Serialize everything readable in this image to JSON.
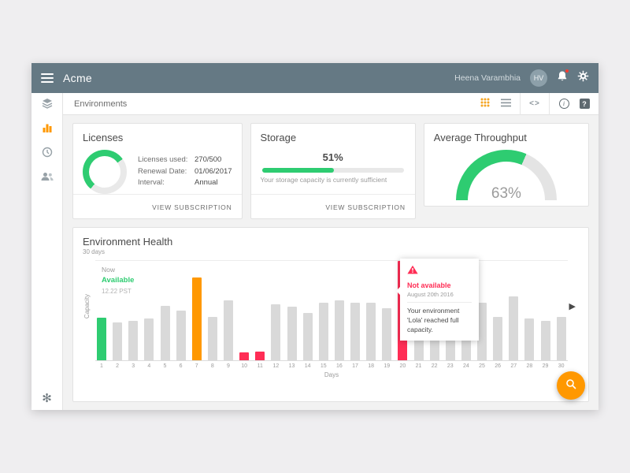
{
  "colors": {
    "green": "#2ecc71",
    "orange": "#ff9800",
    "red": "#ff2d55"
  },
  "header": {
    "app_name": "Acme",
    "user_name": "Heena Varambhia",
    "avatar_initials": "HV"
  },
  "breadcrumb": {
    "label": "Environments"
  },
  "icons": {
    "code": "<>",
    "flower": "✻",
    "chevron_right": "▶",
    "info": "i",
    "help": "?"
  },
  "cards": {
    "licenses": {
      "title": "Licenses",
      "donut_percent": 54,
      "fields": [
        {
          "label": "Licenses used:",
          "value": "270/500"
        },
        {
          "label": "Renewal Date:",
          "value": "01/06/2017"
        },
        {
          "label": "Interval:",
          "value": "Annual"
        }
      ],
      "footer_link": "VIEW SUBSCRIPTION"
    },
    "storage": {
      "title": "Storage",
      "percent": 51,
      "percent_label": "51%",
      "description": "Your storage capacity is currently sufficient",
      "footer_link": "VIEW SUBSCRIPTION"
    },
    "throughput": {
      "title": "Average Throughput",
      "percent": 63,
      "percent_label": "63%"
    }
  },
  "environment_health": {
    "title": "Environment Health",
    "subtitle": "30 days"
  },
  "chart_data": {
    "type": "bar",
    "title": "Environment Health",
    "xlabel": "Days",
    "ylabel": "Capacity",
    "ylim": [
      0,
      100
    ],
    "categories": [
      1,
      2,
      3,
      4,
      5,
      6,
      7,
      8,
      9,
      10,
      11,
      12,
      13,
      14,
      15,
      16,
      17,
      18,
      19,
      20,
      21,
      22,
      23,
      24,
      25,
      26,
      27,
      28,
      29,
      30
    ],
    "values": [
      43,
      38,
      40,
      42,
      55,
      50,
      83,
      44,
      60,
      8,
      9,
      56,
      54,
      48,
      58,
      60,
      58,
      58,
      52,
      100,
      56,
      40,
      42,
      38,
      58,
      44,
      64,
      42,
      40,
      44
    ],
    "default_color": "#d9d9d9",
    "colors": {
      "0": "#2ecc71",
      "6": "#ff9800",
      "9": "#ff2d55",
      "10": "#ff2d55",
      "19": "#ff2d55"
    },
    "legend": "none",
    "grid": "top and baseline hairlines only",
    "tooltip_now": {
      "label": "Now",
      "status": "Available",
      "time": "12.22 PST"
    },
    "tooltip_alert": {
      "title": "Not available",
      "date": "August 20th 2016",
      "message": "Your environment 'Lola' reached full capacity."
    }
  }
}
